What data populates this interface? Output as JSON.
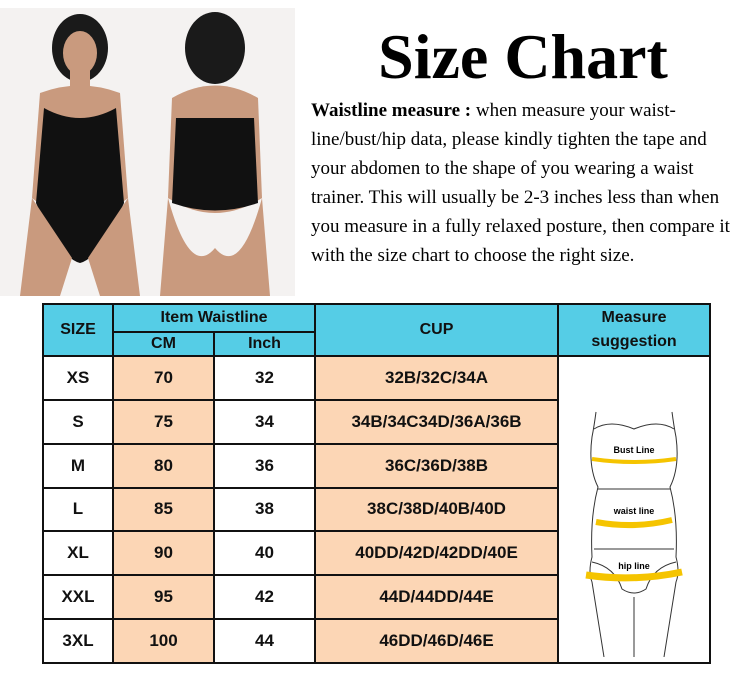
{
  "title": "Size Chart",
  "description": {
    "lead": "Waistline measure :",
    "text": " when measure your waist-line/bust/hip data, please kindly tighten the tape and your abdomen to the shape of you wearing a waist trainer. This will usually be 2-3 inches less than when you measure in a fully relaxed posture, then compare it with the size chart to choose the right size."
  },
  "table": {
    "headers": {
      "size": "SIZE",
      "waistline": "Item Waistline",
      "cm": "CM",
      "inch": "Inch",
      "cup": "CUP",
      "measure": "Measure suggestion"
    },
    "rows": [
      {
        "size": "XS",
        "cm": "70",
        "inch": "32",
        "cup": "32B/32C/34A"
      },
      {
        "size": "S",
        "cm": "75",
        "inch": "34",
        "cup": "34B/34C34D/36A/36B"
      },
      {
        "size": "M",
        "cm": "80",
        "inch": "36",
        "cup": "36C/36D/38B"
      },
      {
        "size": "L",
        "cm": "85",
        "inch": "38",
        "cup": "38C/38D/40B/40D"
      },
      {
        "size": "XL",
        "cm": "90",
        "inch": "40",
        "cup": "40DD/42D/42DD/40E"
      },
      {
        "size": "XXL",
        "cm": "95",
        "inch": "42",
        "cup": "44D/44DD/44E"
      },
      {
        "size": "3XL",
        "cm": "100",
        "inch": "44",
        "cup": "46DD/46D/46E"
      }
    ],
    "figure_labels": {
      "bust": "Bust Line",
      "waist": "waist line",
      "hip": "hip line"
    }
  },
  "colors": {
    "header": "#55cde6",
    "highlight": "#fcd6b5",
    "measure_line": "#f5c400"
  }
}
